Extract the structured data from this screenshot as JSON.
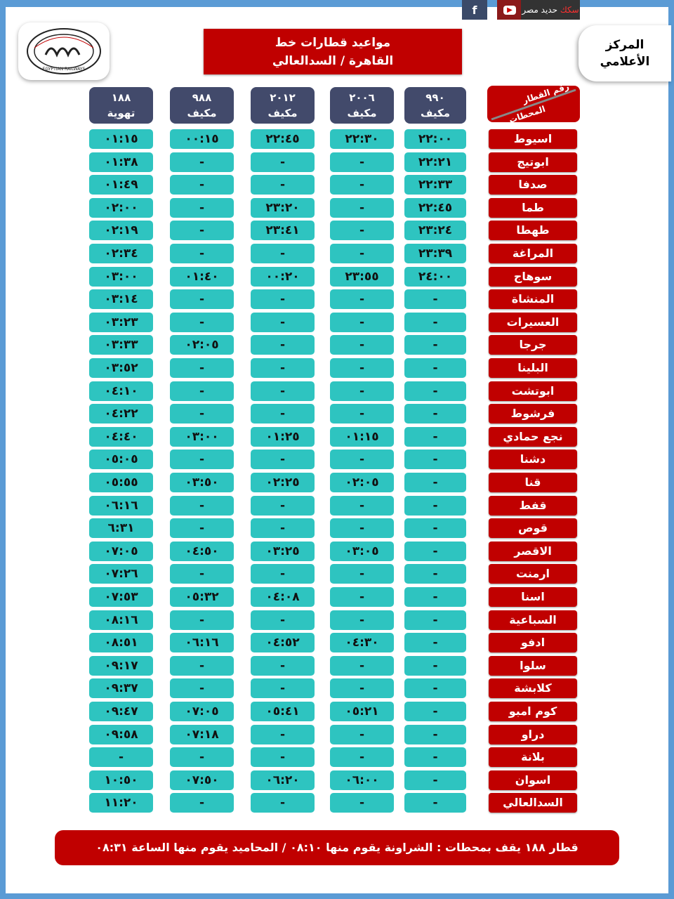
{
  "header": {
    "title_line1": "مواعيد قطارات خط",
    "title_line2": "القاهرة / السدالعالي",
    "media_center_line1": "المركز",
    "media_center_line2": "الأعلامي",
    "brand_text_red": "سكك",
    "brand_text": "حديد مصر",
    "logo_text": "EGYPTIAN RAILWAYS",
    "logo_arabic": "سكك حديد مصر",
    "social_icons": [
      "facebook-icon",
      "youtube-icon"
    ]
  },
  "table": {
    "station_header_top": "رقم القطار",
    "station_header_bottom": "المحطات",
    "trains": [
      {
        "number": "٩٩٠",
        "type": "مكيف"
      },
      {
        "number": "٢٠٠٦",
        "type": "مكيف"
      },
      {
        "number": "٢٠١٢",
        "type": "مكيف"
      },
      {
        "number": "٩٨٨",
        "type": "مكيف"
      },
      {
        "number": "١٨٨",
        "type": "تهوية"
      }
    ],
    "rows": [
      {
        "station": "اسيوط",
        "times": [
          "٢٢:٠٠",
          "٢٢:٣٠",
          "٢٢:٤٥",
          "٠٠:١٥",
          "٠١:١٥"
        ]
      },
      {
        "station": "ابوتيج",
        "times": [
          "٢٢:٢١",
          "-",
          "-",
          "-",
          "٠١:٣٨"
        ]
      },
      {
        "station": "صدفا",
        "times": [
          "٢٢:٣٣",
          "-",
          "-",
          "-",
          "٠١:٤٩"
        ]
      },
      {
        "station": "طما",
        "times": [
          "٢٢:٤٥",
          "-",
          "٢٣:٢٠",
          "-",
          "٠٢:٠٠"
        ]
      },
      {
        "station": "طهطا",
        "times": [
          "٢٣:٢٤",
          "-",
          "٢٣:٤١",
          "-",
          "٠٢:١٩"
        ]
      },
      {
        "station": "المراغة",
        "times": [
          "٢٣:٣٩",
          "-",
          "-",
          "-",
          "٠٢:٣٤"
        ]
      },
      {
        "station": "سوهاج",
        "times": [
          "٢٤:٠٠",
          "٢٣:٥٥",
          "٠٠:٢٠",
          "٠١:٤٠",
          "٠٣:٠٠"
        ]
      },
      {
        "station": "المنشاة",
        "times": [
          "-",
          "-",
          "-",
          "-",
          "٠٣:١٤"
        ]
      },
      {
        "station": "العسيرات",
        "times": [
          "-",
          "-",
          "-",
          "-",
          "٠٣:٢٣"
        ]
      },
      {
        "station": "جرجا",
        "times": [
          "-",
          "-",
          "-",
          "٠٢:٠٥",
          "٠٣:٣٣"
        ]
      },
      {
        "station": "البلينا",
        "times": [
          "-",
          "-",
          "-",
          "-",
          "٠٣:٥٢"
        ]
      },
      {
        "station": "ابوتشت",
        "times": [
          "-",
          "-",
          "-",
          "-",
          "٠٤:١٠"
        ]
      },
      {
        "station": "فرشوط",
        "times": [
          "-",
          "-",
          "-",
          "-",
          "٠٤:٢٢"
        ]
      },
      {
        "station": "نجع حمادي",
        "times": [
          "-",
          "٠١:١٥",
          "٠١:٢٥",
          "٠٣:٠٠",
          "٠٤:٤٠"
        ]
      },
      {
        "station": "دشنا",
        "times": [
          "-",
          "-",
          "-",
          "-",
          "٠٥:٠٥"
        ]
      },
      {
        "station": "قنا",
        "times": [
          "-",
          "٠٢:٠٥",
          "٠٢:٢٥",
          "٠٣:٥٠",
          "٠٥:٥٥"
        ]
      },
      {
        "station": "قفط",
        "times": [
          "-",
          "-",
          "-",
          "-",
          "٠٦:١٦"
        ]
      },
      {
        "station": "قوص",
        "times": [
          "-",
          "-",
          "-",
          "-",
          "٦:٣١"
        ]
      },
      {
        "station": "الاقصر",
        "times": [
          "-",
          "٠٣:٠٥",
          "٠٣:٢٥",
          "٠٤:٥٠",
          "٠٧:٠٥"
        ]
      },
      {
        "station": "ارمنت",
        "times": [
          "-",
          "-",
          "-",
          "-",
          "٠٧:٢٦"
        ]
      },
      {
        "station": "اسنا",
        "times": [
          "-",
          "-",
          "٠٤:٠٨",
          "٠٥:٣٢",
          "٠٧:٥٣"
        ]
      },
      {
        "station": "السباعية",
        "times": [
          "-",
          "-",
          "-",
          "-",
          "٠٨:١٦"
        ]
      },
      {
        "station": "ادفو",
        "times": [
          "-",
          "٠٤:٣٠",
          "٠٤:٥٢",
          "٠٦:١٦",
          "٠٨:٥١"
        ]
      },
      {
        "station": "سلوا",
        "times": [
          "-",
          "-",
          "-",
          "-",
          "٠٩:١٧"
        ]
      },
      {
        "station": "كلابشة",
        "times": [
          "-",
          "-",
          "-",
          "-",
          "٠٩:٣٧"
        ]
      },
      {
        "station": "كوم امبو",
        "times": [
          "-",
          "٠٥:٢١",
          "٠٥:٤١",
          "٠٧:٠٥",
          "٠٩:٤٧"
        ]
      },
      {
        "station": "دراو",
        "times": [
          "-",
          "-",
          "-",
          "٠٧:١٨",
          "٠٩:٥٨"
        ]
      },
      {
        "station": "بلانة",
        "times": [
          "-",
          "-",
          "-",
          "-",
          "-"
        ]
      },
      {
        "station": "اسوان",
        "times": [
          "-",
          "٠٦:٠٠",
          "٠٦:٢٠",
          "٠٧:٥٠",
          "١٠:٥٠"
        ]
      },
      {
        "station": "السدالعالي",
        "times": [
          "-",
          "-",
          "-",
          "-",
          "١١:٢٠"
        ]
      }
    ]
  },
  "footer": {
    "note": "قطار ١٨٨ يقف بمحطات : الشراونة يقوم منها ٠٨:١٠ / المحاميد يقوم منها الساعة ٠٨:٣١"
  },
  "colors": {
    "frame": "#5b9bd5",
    "red": "#c00000",
    "header_navy": "#424a6b",
    "cell_teal": "#2ec4c0"
  }
}
